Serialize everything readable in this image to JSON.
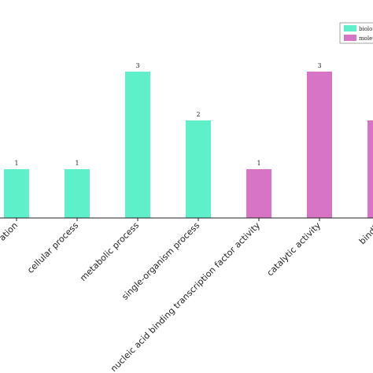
{
  "chart_data": {
    "type": "bar",
    "title": "",
    "xlabel": "",
    "ylabel": "",
    "ylim": [
      0,
      3
    ],
    "grid": false,
    "legend_position": "top-right",
    "legend": [
      {
        "label": "biolo",
        "color": "#5ef0c9"
      },
      {
        "label": "mole",
        "color": "#d874c5"
      }
    ],
    "categories": [
      "ation",
      "cellular process",
      "metabolic process",
      "single-organism process",
      "nucleic acid binding transcription factor activity",
      "catalytic activity",
      "bindin"
    ],
    "series": [
      {
        "group": 0,
        "values": [
          1,
          1,
          3,
          2,
          null,
          null,
          null
        ]
      },
      {
        "group": 1,
        "values": [
          null,
          null,
          null,
          null,
          1,
          3,
          2
        ]
      }
    ],
    "data_labels": [
      "1",
      "1",
      "3",
      "2",
      "1",
      "3",
      ""
    ]
  }
}
